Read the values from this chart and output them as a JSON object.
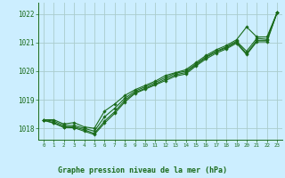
{
  "title": "Graphe pression niveau de la mer (hPa)",
  "background_color": "#cceeff",
  "grid_color": "#aacccc",
  "line_color": "#1a6b1a",
  "ylim": [
    1017.6,
    1022.4
  ],
  "xlim": [
    -0.5,
    23.5
  ],
  "yticks": [
    1018,
    1019,
    1020,
    1021,
    1022
  ],
  "xticks": [
    0,
    1,
    2,
    3,
    4,
    5,
    6,
    7,
    8,
    9,
    10,
    11,
    12,
    13,
    14,
    15,
    16,
    17,
    18,
    19,
    20,
    21,
    22,
    23
  ],
  "series": [
    [
      1018.3,
      1018.3,
      1018.15,
      1018.2,
      1018.05,
      1018.0,
      1018.6,
      1018.85,
      1019.15,
      1019.35,
      1019.5,
      1019.65,
      1019.85,
      1019.95,
      1020.05,
      1020.3,
      1020.55,
      1020.75,
      1020.9,
      1021.1,
      1021.55,
      1021.2,
      1021.2,
      1022.05
    ],
    [
      1018.3,
      1018.25,
      1018.1,
      1018.1,
      1018.0,
      1017.9,
      1018.4,
      1018.7,
      1019.05,
      1019.3,
      1019.45,
      1019.6,
      1019.78,
      1019.93,
      1020.0,
      1020.25,
      1020.5,
      1020.7,
      1020.85,
      1021.05,
      1020.7,
      1021.15,
      1021.12,
      1022.05
    ],
    [
      1018.28,
      1018.2,
      1018.05,
      1018.05,
      1017.95,
      1017.82,
      1018.25,
      1018.58,
      1018.98,
      1019.25,
      1019.4,
      1019.55,
      1019.72,
      1019.88,
      1019.95,
      1020.22,
      1020.48,
      1020.68,
      1020.82,
      1021.02,
      1020.62,
      1021.08,
      1021.08,
      1022.05
    ],
    [
      1018.28,
      1018.18,
      1018.03,
      1018.02,
      1017.9,
      1017.78,
      1018.18,
      1018.52,
      1018.92,
      1019.22,
      1019.37,
      1019.52,
      1019.67,
      1019.83,
      1019.9,
      1020.18,
      1020.43,
      1020.63,
      1020.78,
      1020.98,
      1020.58,
      1021.03,
      1021.03,
      1022.05
    ]
  ]
}
